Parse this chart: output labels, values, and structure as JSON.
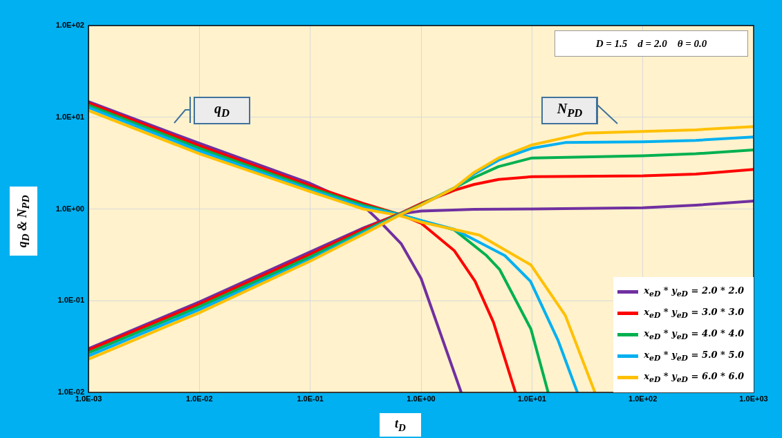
{
  "chart_data": {
    "type": "line",
    "xlabel": "t$_{D}$",
    "ylabel": "q$_{D}$ & N$_{PD}$",
    "log": "xy",
    "xlim": [
      0.001,
      1000
    ],
    "ylim": [
      0.01,
      100
    ],
    "xticks": [
      {
        "value": 0.001,
        "label": "1.0E-03"
      },
      {
        "value": 0.01,
        "label": "1.0E-02"
      },
      {
        "value": 0.1,
        "label": "1.0E-01"
      },
      {
        "value": 1,
        "label": "1.0E+00"
      },
      {
        "value": 10,
        "label": "1.0E+01"
      },
      {
        "value": 100,
        "label": "1.0E+02"
      },
      {
        "value": 1000,
        "label": "1.0E+03"
      }
    ],
    "yticks": [
      {
        "value": 0.01,
        "label": "1.0E-02"
      },
      {
        "value": 0.1,
        "label": "1.0E-01"
      },
      {
        "value": 1,
        "label": "1.0E+00"
      },
      {
        "value": 10,
        "label": "1.0E+01"
      },
      {
        "value": 100,
        "label": "1.0E+02"
      }
    ],
    "grid": true,
    "legend": "bottom right",
    "marker": "none",
    "annotations": [
      "q$_{D}$",
      "N$_{PD}$",
      "D = 1.5    d = 2.0    θ = 0.0"
    ],
    "series": [
      {
        "name": "x$_{eD}$ * y$_{eD}$ = 2.0 * 2.0",
        "color": "#7030a0",
        "x": [
          0.001,
          0.01,
          0.1,
          0.2,
          0.31,
          0.42,
          0.66,
          1,
          2.3
        ],
        "values": [
          14.8,
          5.2,
          1.9,
          1.3,
          1.05,
          0.74,
          0.42,
          0.175,
          0.01
        ]
      },
      {
        "name": "x$_{eD}$ * y$_{eD}$ = 3.0 * 3.0",
        "color": "#ff0000",
        "x": [
          0.001,
          0.01,
          0.1,
          0.3,
          0.63,
          1,
          2,
          3.07,
          4.5,
          7.1
        ],
        "values": [
          14.3,
          4.9,
          1.8,
          1.15,
          0.88,
          0.7,
          0.35,
          0.163,
          0.058,
          0.01
        ]
      },
      {
        "name": "x$_{eD}$ * y$_{eD}$ = 4.0 * 4.0",
        "color": "#00b050",
        "x": [
          0.001,
          0.01,
          0.1,
          0.3,
          0.63,
          1,
          2,
          3.9,
          5.1,
          9.8,
          14
        ],
        "values": [
          13.5,
          4.6,
          1.7,
          1.1,
          0.88,
          0.75,
          0.59,
          0.31,
          0.22,
          0.049,
          0.01
        ]
      },
      {
        "name": "x$_{eD}$ * y$_{eD}$ = 5.0 * 5.0",
        "color": "#00b0f0",
        "x": [
          0.001,
          0.01,
          0.1,
          0.3,
          0.63,
          1,
          2,
          5.7,
          9.7,
          17.2,
          25.7
        ],
        "values": [
          12.8,
          4.3,
          1.62,
          1.05,
          0.87,
          0.75,
          0.6,
          0.31,
          0.163,
          0.037,
          0.01
        ]
      },
      {
        "name": "x$_{eD}$ * y$_{eD}$ = 6.0 * 6.0",
        "color": "#ffc000",
        "x": [
          0.001,
          0.01,
          0.1,
          0.3,
          0.63,
          1,
          3.35,
          9.8,
          20,
          37
        ],
        "values": [
          11.8,
          4.0,
          1.55,
          1.0,
          0.85,
          0.72,
          0.52,
          0.245,
          0.069,
          0.01
        ]
      },
      {
        "color": "#7030a0",
        "x": [
          0.001,
          0.01,
          0.1,
          0.3,
          0.63,
          1,
          3,
          10,
          100,
          300,
          1000
        ],
        "values": [
          0.03,
          0.097,
          0.34,
          0.62,
          0.88,
          0.95,
          0.99,
          1.0,
          1.03,
          1.1,
          1.22
        ]
      },
      {
        "color": "#ff0000",
        "x": [
          0.001,
          0.01,
          0.1,
          0.3,
          0.63,
          1,
          2,
          3,
          5,
          10,
          100,
          300,
          1000
        ],
        "values": [
          0.029,
          0.092,
          0.32,
          0.6,
          0.88,
          1.15,
          1.6,
          1.85,
          2.1,
          2.25,
          2.3,
          2.4,
          2.7
        ]
      },
      {
        "color": "#00b050",
        "x": [
          0.001,
          0.01,
          0.1,
          0.3,
          0.63,
          1,
          2,
          3,
          5,
          10,
          100,
          300,
          1000
        ],
        "values": [
          0.027,
          0.086,
          0.3,
          0.57,
          0.87,
          1.12,
          1.7,
          2.2,
          2.9,
          3.6,
          3.8,
          4.0,
          4.4
        ]
      },
      {
        "color": "#00b0f0",
        "x": [
          0.001,
          0.01,
          0.1,
          0.3,
          0.63,
          1,
          2,
          3,
          5,
          10,
          20,
          100,
          300,
          1000
        ],
        "values": [
          0.025,
          0.08,
          0.28,
          0.55,
          0.86,
          1.1,
          1.7,
          2.4,
          3.4,
          4.6,
          5.3,
          5.4,
          5.6,
          6.1
        ]
      },
      {
        "color": "#ffc000",
        "x": [
          0.001,
          0.01,
          0.1,
          0.3,
          0.63,
          1,
          2,
          3,
          5,
          10,
          30,
          100,
          300,
          1000
        ],
        "values": [
          0.023,
          0.074,
          0.27,
          0.53,
          0.85,
          1.1,
          1.7,
          2.5,
          3.6,
          5.0,
          6.7,
          7.0,
          7.3,
          7.9
        ]
      }
    ]
  }
}
